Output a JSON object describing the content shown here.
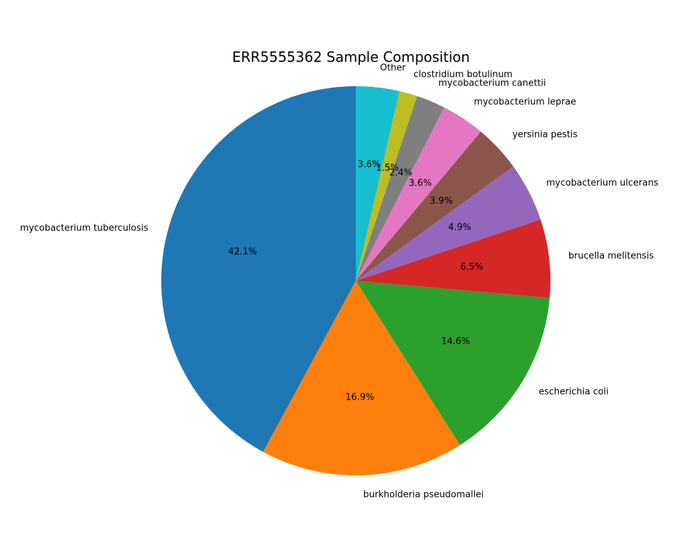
{
  "chart_data": {
    "type": "pie",
    "title": "ERR5555362 Sample Composition",
    "start_angle_deg": 90,
    "direction": "counterclockwise",
    "slices": [
      {
        "label": "mycobacterium tuberculosis",
        "value": 42.1,
        "pct_label": "42.1%",
        "color": "#1f77b4"
      },
      {
        "label": "burkholderia pseudomallei",
        "value": 16.9,
        "pct_label": "16.9%",
        "color": "#ff7f0e"
      },
      {
        "label": "escherichia coli",
        "value": 14.6,
        "pct_label": "14.6%",
        "color": "#2ca02c"
      },
      {
        "label": "brucella melitensis",
        "value": 6.5,
        "pct_label": "6.5%",
        "color": "#d62728"
      },
      {
        "label": "mycobacterium ulcerans",
        "value": 4.9,
        "pct_label": "4.9%",
        "color": "#9467bd"
      },
      {
        "label": "yersinia pestis",
        "value": 3.9,
        "pct_label": "3.9%",
        "color": "#8c564b"
      },
      {
        "label": "mycobacterium leprae",
        "value": 3.6,
        "pct_label": "3.6%",
        "color": "#e377c2"
      },
      {
        "label": "mycobacterium canettii",
        "value": 2.4,
        "pct_label": "2.4%",
        "color": "#7f7f7f"
      },
      {
        "label": "clostridium botulinum",
        "value": 1.5,
        "pct_label": "1.5%",
        "color": "#bcbd22"
      },
      {
        "label": "Other",
        "value": 3.6,
        "pct_label": "3.6%",
        "color": "#17becf"
      }
    ]
  }
}
